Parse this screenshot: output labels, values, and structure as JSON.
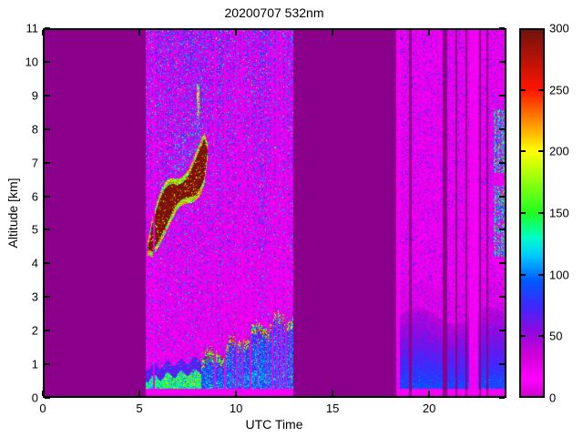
{
  "title": "20200707 532nm",
  "axes": {
    "xlabel": "UTC Time",
    "ylabel": "Altitude [km]"
  },
  "chart_data": {
    "type": "heatmap",
    "title": "20200707 532nm",
    "xlabel": "UTC Time",
    "ylabel": "Altitude [km]",
    "xlim": [
      0,
      24
    ],
    "ylim": [
      0,
      11
    ],
    "xticks": [
      0,
      5,
      10,
      15,
      20
    ],
    "yticks": [
      0,
      1,
      2,
      3,
      4,
      5,
      6,
      7,
      8,
      9,
      10,
      11
    ],
    "grid": false,
    "colorbar": {
      "min": 0,
      "max": 300,
      "ticks": [
        0,
        50,
        100,
        150,
        200,
        250,
        300
      ],
      "stops": [
        {
          "v": 0,
          "c": "#C800C8"
        },
        {
          "v": 15,
          "c": "#FF00FF"
        },
        {
          "v": 35,
          "c": "#CD00D7"
        },
        {
          "v": 55,
          "c": "#8C0AE1"
        },
        {
          "v": 75,
          "c": "#3C28FF"
        },
        {
          "v": 95,
          "c": "#005AFF"
        },
        {
          "v": 115,
          "c": "#00C8FF"
        },
        {
          "v": 130,
          "c": "#00FFC8"
        },
        {
          "v": 150,
          "c": "#1EFF1E"
        },
        {
          "v": 200,
          "c": "#FFFF00"
        },
        {
          "v": 250,
          "c": "#FF1400"
        },
        {
          "v": 300,
          "c": "#6E120E"
        }
      ]
    },
    "no_data_color": "#8B008B",
    "measurement_segments": [
      {
        "name": "morning-segment",
        "t_start": 5.33,
        "t_end": 12.97
      },
      {
        "name": "evening-segment",
        "t_start": 18.3,
        "t_end": 24.0
      }
    ],
    "features": {
      "background_noise": {
        "base_value_range": [
          4,
          30
        ],
        "speckle_value_range": [
          35,
          120
        ]
      },
      "boundary_layer_morning": {
        "t": [
          5.33,
          8.6
        ],
        "top_km": [
          0.55,
          0.95
        ],
        "value_range": [
          75,
          160
        ]
      },
      "convective_layer": {
        "t": [
          8.2,
          12.97
        ],
        "top_km": [
          1.05,
          2.5
        ],
        "interior_value_range": [
          45,
          130
        ],
        "edge_value_range": [
          150,
          300
        ]
      },
      "elevated_cloud": {
        "t": [
          5.4,
          8.55
        ],
        "center_km_start": 4.55,
        "center_km_end": 7.4,
        "half_width_km": 0.42,
        "core_value": 300,
        "fringe_value_range": [
          120,
          250
        ]
      },
      "cirrus_above_cloud": {
        "t": [
          6.8,
          8.6
        ],
        "thickness_km": 2.0,
        "value_range": [
          70,
          140
        ]
      },
      "lofted_streak": {
        "t": [
          7.98,
          8.12
        ],
        "z": [
          8.4,
          9.35
        ],
        "value_range": [
          110,
          220
        ]
      },
      "near_field_strip_km": 0.26,
      "evening_haze": {
        "t": [
          18.3,
          24.0
        ],
        "top_km": 2.45,
        "bottom_value": 90,
        "top_value": 30
      },
      "evening_clouds": {
        "t": [
          23.3,
          23.92
        ],
        "z_bands": [
          [
            4.2,
            6.3
          ],
          [
            6.7,
            8.6
          ]
        ],
        "value_range": [
          80,
          160
        ]
      },
      "bright_columns_morning": [
        [
          5.72,
          5.8
        ],
        [
          8.86,
          8.94
        ],
        [
          9.38,
          9.46
        ],
        [
          9.74,
          9.82
        ],
        [
          10.0,
          10.08
        ],
        [
          10.28,
          10.36
        ],
        [
          10.7,
          10.78
        ],
        [
          11.06,
          11.14
        ],
        [
          11.58,
          11.66
        ],
        [
          11.84,
          11.92
        ],
        [
          12.08,
          12.16
        ],
        [
          12.32,
          12.4
        ],
        [
          12.54,
          12.62
        ],
        [
          12.76,
          12.84
        ]
      ],
      "bright_columns_evening": [
        [
          18.3,
          18.48
        ],
        [
          22.08,
          22.55
        ]
      ],
      "gap_columns_evening": [
        [
          18.95,
          19.08
        ],
        [
          20.72,
          20.95
        ],
        [
          21.38,
          21.46
        ],
        [
          21.88,
          21.96
        ],
        [
          22.58,
          22.7
        ],
        [
          22.98,
          23.08
        ]
      ]
    }
  },
  "layout_colors": {
    "frame": "#000000",
    "text": "#000000",
    "page_background": "#FFFFFF"
  }
}
